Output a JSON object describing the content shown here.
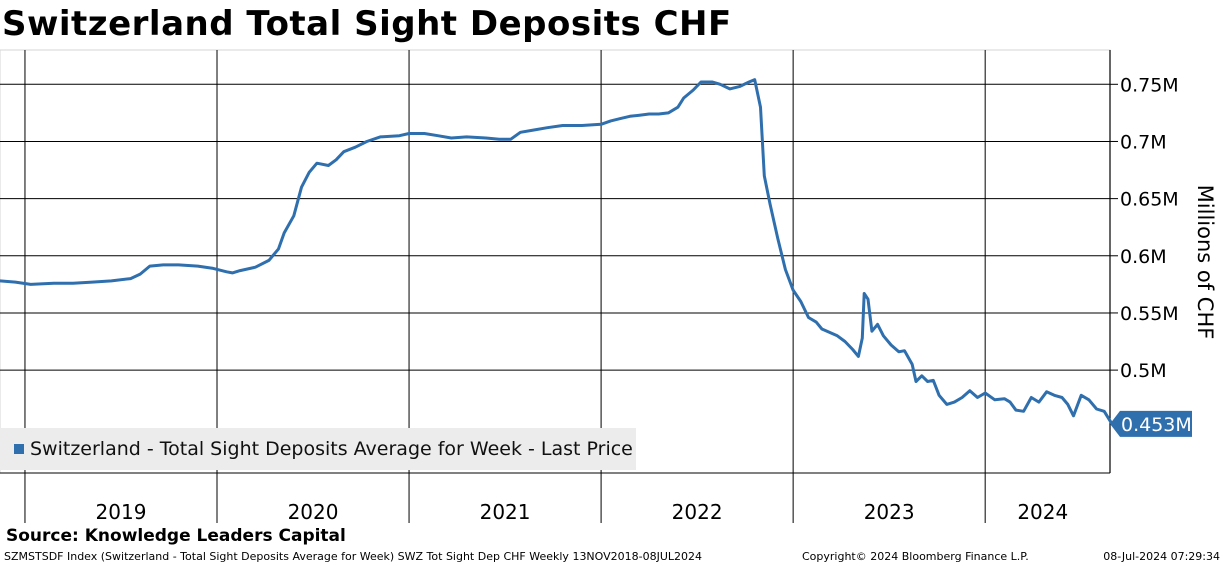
{
  "chart_data": {
    "type": "line",
    "title": "Switzerland Total Sight Deposits CHF",
    "ylabel": "Millions of CHF",
    "xlabel": "",
    "ylim": [
      0.41,
      0.78
    ],
    "xlim": [
      2018.87,
      2024.65
    ],
    "y_ticks": [
      {
        "value": 0.5,
        "label": "0.5M"
      },
      {
        "value": 0.55,
        "label": "0.55M"
      },
      {
        "value": 0.6,
        "label": "0.6M"
      },
      {
        "value": 0.65,
        "label": "0.65M"
      },
      {
        "value": 0.7,
        "label": "0.7M"
      },
      {
        "value": 0.75,
        "label": "0.75M"
      }
    ],
    "year_boundaries": [
      2019,
      2020,
      2021,
      2022,
      2023,
      2024
    ],
    "year_labels": [
      {
        "x": 2019.5,
        "label": "2019"
      },
      {
        "x": 2020.5,
        "label": "2020"
      },
      {
        "x": 2021.5,
        "label": "2021"
      },
      {
        "x": 2022.5,
        "label": "2022"
      },
      {
        "x": 2023.5,
        "label": "2023"
      },
      {
        "x": 2024.3,
        "label": "2024"
      }
    ],
    "series": [
      {
        "name": "Switzerland - Total Sight Deposits Average for Week - Last Price",
        "color": "#2f6fad",
        "last_value": 0.453,
        "last_label": "0.453M",
        "points": [
          [
            2018.87,
            0.578
          ],
          [
            2018.95,
            0.577
          ],
          [
            2019.03,
            0.575
          ],
          [
            2019.15,
            0.576
          ],
          [
            2019.25,
            0.576
          ],
          [
            2019.35,
            0.577
          ],
          [
            2019.45,
            0.578
          ],
          [
            2019.55,
            0.58
          ],
          [
            2019.6,
            0.584
          ],
          [
            2019.65,
            0.591
          ],
          [
            2019.72,
            0.592
          ],
          [
            2019.8,
            0.592
          ],
          [
            2019.9,
            0.591
          ],
          [
            2019.98,
            0.589
          ],
          [
            2020.05,
            0.586
          ],
          [
            2020.08,
            0.585
          ],
          [
            2020.12,
            0.587
          ],
          [
            2020.2,
            0.59
          ],
          [
            2020.27,
            0.596
          ],
          [
            2020.32,
            0.606
          ],
          [
            2020.35,
            0.62
          ],
          [
            2020.4,
            0.635
          ],
          [
            2020.44,
            0.66
          ],
          [
            2020.48,
            0.673
          ],
          [
            2020.52,
            0.681
          ],
          [
            2020.58,
            0.679
          ],
          [
            2020.62,
            0.684
          ],
          [
            2020.66,
            0.691
          ],
          [
            2020.72,
            0.695
          ],
          [
            2020.78,
            0.7
          ],
          [
            2020.85,
            0.704
          ],
          [
            2020.95,
            0.705
          ],
          [
            2021.0,
            0.707
          ],
          [
            2021.08,
            0.707
          ],
          [
            2021.15,
            0.705
          ],
          [
            2021.22,
            0.703
          ],
          [
            2021.3,
            0.704
          ],
          [
            2021.4,
            0.703
          ],
          [
            2021.47,
            0.702
          ],
          [
            2021.53,
            0.702
          ],
          [
            2021.58,
            0.708
          ],
          [
            2021.65,
            0.71
          ],
          [
            2021.72,
            0.712
          ],
          [
            2021.8,
            0.714
          ],
          [
            2021.9,
            0.714
          ],
          [
            2022.0,
            0.715
          ],
          [
            2022.05,
            0.718
          ],
          [
            2022.1,
            0.72
          ],
          [
            2022.15,
            0.722
          ],
          [
            2022.2,
            0.723
          ],
          [
            2022.25,
            0.724
          ],
          [
            2022.3,
            0.724
          ],
          [
            2022.35,
            0.725
          ],
          [
            2022.4,
            0.73
          ],
          [
            2022.43,
            0.738
          ],
          [
            2022.48,
            0.745
          ],
          [
            2022.52,
            0.752
          ],
          [
            2022.58,
            0.752
          ],
          [
            2022.62,
            0.75
          ],
          [
            2022.67,
            0.746
          ],
          [
            2022.72,
            0.748
          ],
          [
            2022.77,
            0.752
          ],
          [
            2022.8,
            0.754
          ],
          [
            2022.83,
            0.73
          ],
          [
            2022.85,
            0.67
          ],
          [
            2022.88,
            0.645
          ],
          [
            2022.92,
            0.615
          ],
          [
            2022.96,
            0.588
          ],
          [
            2023.0,
            0.57
          ],
          [
            2023.04,
            0.56
          ],
          [
            2023.08,
            0.546
          ],
          [
            2023.12,
            0.542
          ],
          [
            2023.15,
            0.536
          ],
          [
            2023.19,
            0.533
          ],
          [
            2023.23,
            0.53
          ],
          [
            2023.27,
            0.525
          ],
          [
            2023.31,
            0.518
          ],
          [
            2023.34,
            0.512
          ],
          [
            2023.36,
            0.528
          ],
          [
            2023.37,
            0.567
          ],
          [
            2023.39,
            0.562
          ],
          [
            2023.41,
            0.534
          ],
          [
            2023.44,
            0.54
          ],
          [
            2023.47,
            0.53
          ],
          [
            2023.51,
            0.522
          ],
          [
            2023.55,
            0.516
          ],
          [
            2023.58,
            0.517
          ],
          [
            2023.62,
            0.505
          ],
          [
            2023.64,
            0.49
          ],
          [
            2023.67,
            0.495
          ],
          [
            2023.7,
            0.49
          ],
          [
            2023.73,
            0.491
          ],
          [
            2023.76,
            0.478
          ],
          [
            2023.8,
            0.47
          ],
          [
            2023.84,
            0.472
          ],
          [
            2023.88,
            0.476
          ],
          [
            2023.92,
            0.482
          ],
          [
            2023.96,
            0.476
          ],
          [
            2024.0,
            0.48
          ],
          [
            2024.05,
            0.474
          ],
          [
            2024.1,
            0.475
          ],
          [
            2024.13,
            0.472
          ],
          [
            2024.16,
            0.465
          ],
          [
            2024.2,
            0.464
          ],
          [
            2024.24,
            0.476
          ],
          [
            2024.28,
            0.472
          ],
          [
            2024.32,
            0.481
          ],
          [
            2024.36,
            0.478
          ],
          [
            2024.4,
            0.476
          ],
          [
            2024.43,
            0.47
          ],
          [
            2024.46,
            0.46
          ],
          [
            2024.5,
            0.478
          ],
          [
            2024.54,
            0.474
          ],
          [
            2024.58,
            0.466
          ],
          [
            2024.62,
            0.464
          ],
          [
            2024.66,
            0.453
          ]
        ]
      }
    ]
  },
  "source": "Source: Knowledge Leaders Capital",
  "footer": {
    "left": "SZMSTSDF Index (Switzerland - Total Sight Deposits Average for Week) SWZ Tot Sight Dep CHF  Weekly 13NOV2018-08JUL2024",
    "middle": "Copyright© 2024 Bloomberg Finance L.P.",
    "right": "08-Jul-2024 07:29:34"
  }
}
